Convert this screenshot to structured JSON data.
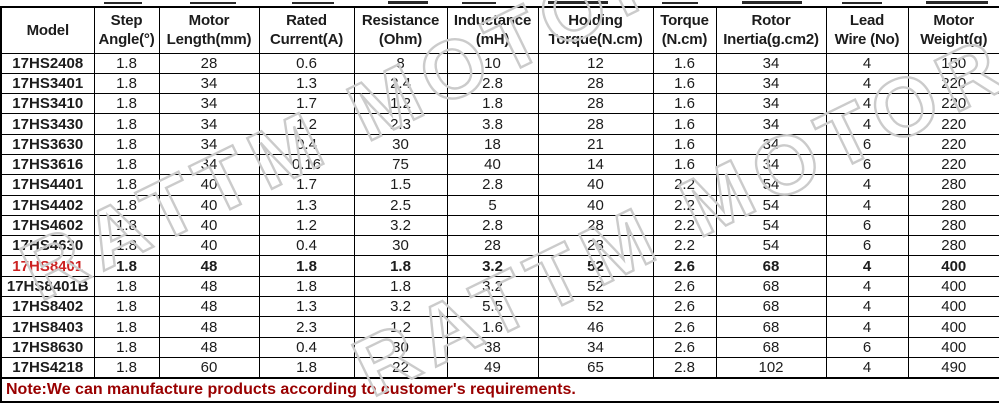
{
  "watermark": {
    "text": "RATTM MOTOR"
  },
  "colors": {
    "highlight_model": "#cc2222",
    "note_text": "#990000",
    "watermark_stroke": "#cbcbcb"
  },
  "table": {
    "columns": [
      [
        "Model",
        ""
      ],
      [
        "Step",
        "Angle(°)"
      ],
      [
        "Motor",
        "Length(mm)"
      ],
      [
        "Rated",
        "Current(A)"
      ],
      [
        "Resistance",
        "(Ohm)"
      ],
      [
        "Inductance",
        "(mH)"
      ],
      [
        "Holding",
        "Torque(N.cm)"
      ],
      [
        "Torque",
        "(N.cm)"
      ],
      [
        "Rotor",
        "Inertia(g.cm2)"
      ],
      [
        "Lead",
        "Wire (No)"
      ],
      [
        "Motor",
        "Weight(g)"
      ]
    ],
    "rows": [
      {
        "model": "17HS2408",
        "highlight": false,
        "values": [
          "1.8",
          "28",
          "0.6",
          "8",
          "10",
          "12",
          "1.6",
          "34",
          "4",
          "150"
        ]
      },
      {
        "model": "17HS3401",
        "highlight": false,
        "values": [
          "1.8",
          "34",
          "1.3",
          "2.4",
          "2.8",
          "28",
          "1.6",
          "34",
          "4",
          "220"
        ]
      },
      {
        "model": "17HS3410",
        "highlight": false,
        "values": [
          "1.8",
          "34",
          "1.7",
          "1.2",
          "1.8",
          "28",
          "1.6",
          "34",
          "4",
          "220"
        ]
      },
      {
        "model": "17HS3430",
        "highlight": false,
        "values": [
          "1.8",
          "34",
          "1.2",
          "2.3",
          "3.8",
          "28",
          "1.6",
          "34",
          "4",
          "220"
        ]
      },
      {
        "model": "17HS3630",
        "highlight": false,
        "values": [
          "1.8",
          "34",
          "0.4",
          "30",
          "18",
          "21",
          "1.6",
          "34",
          "6",
          "220"
        ]
      },
      {
        "model": "17HS3616",
        "highlight": false,
        "values": [
          "1.8",
          "34",
          "0.16",
          "75",
          "40",
          "14",
          "1.6",
          "34",
          "6",
          "220"
        ]
      },
      {
        "model": "17HS4401",
        "highlight": false,
        "values": [
          "1.8",
          "40",
          "1.7",
          "1.5",
          "2.8",
          "40",
          "2.2",
          "54",
          "4",
          "280"
        ]
      },
      {
        "model": "17HS4402",
        "highlight": false,
        "values": [
          "1.8",
          "40",
          "1.3",
          "2.5",
          "5",
          "40",
          "2.2",
          "54",
          "4",
          "280"
        ]
      },
      {
        "model": "17HS4602",
        "highlight": false,
        "values": [
          "1.8",
          "40",
          "1.2",
          "3.2",
          "2.8",
          "28",
          "2.2",
          "54",
          "6",
          "280"
        ]
      },
      {
        "model": "17HS4630",
        "highlight": false,
        "values": [
          "1.8",
          "40",
          "0.4",
          "30",
          "28",
          "28",
          "2.2",
          "54",
          "6",
          "280"
        ]
      },
      {
        "model": "17HS8401",
        "highlight": true,
        "values": [
          "1.8",
          "48",
          "1.8",
          "1.8",
          "3.2",
          "52",
          "2.6",
          "68",
          "4",
          "400"
        ]
      },
      {
        "model": "17HS8401B",
        "highlight": false,
        "values": [
          "1.8",
          "48",
          "1.8",
          "1.8",
          "3.2",
          "52",
          "2.6",
          "68",
          "4",
          "400"
        ]
      },
      {
        "model": "17HS8402",
        "highlight": false,
        "values": [
          "1.8",
          "48",
          "1.3",
          "3.2",
          "5.5",
          "52",
          "2.6",
          "68",
          "4",
          "400"
        ]
      },
      {
        "model": "17HS8403",
        "highlight": false,
        "values": [
          "1.8",
          "48",
          "2.3",
          "1.2",
          "1.6",
          "46",
          "2.6",
          "68",
          "4",
          "400"
        ]
      },
      {
        "model": "17HS8630",
        "highlight": false,
        "values": [
          "1.8",
          "48",
          "0.4",
          "30",
          "38",
          "34",
          "2.6",
          "68",
          "6",
          "400"
        ]
      },
      {
        "model": "17HS4218",
        "highlight": false,
        "values": [
          "1.8",
          "60",
          "1.8",
          "22",
          "49",
          "65",
          "2.8",
          "102",
          "4",
          "490"
        ]
      }
    ]
  },
  "note": "Note:We can manufacture products according to customer's requirements."
}
